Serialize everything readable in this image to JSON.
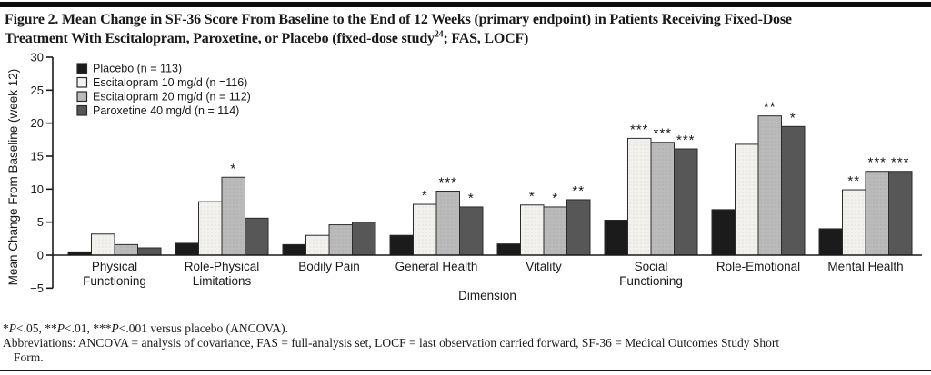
{
  "figure": {
    "title_line1": "Figure 2. Mean Change in SF-36 Score From Baseline to the End of 12 Weeks (primary endpoint) in Patients Receiving Fixed-Dose",
    "title_line2_pre": "Treatment With Escitalopram, Paroxetine, or Placebo (fixed-dose study",
    "title_superscript": "24",
    "title_line2_post": "; FAS, LOCF)"
  },
  "chart_data": {
    "type": "bar",
    "title": "",
    "xlabel": "Dimension",
    "ylabel": "Mean Change From Baseline (week 12)",
    "ylim": [
      -5,
      30
    ],
    "ytick_step": 5,
    "grid": false,
    "legend_position": "top-left",
    "categories": [
      "Physical Functioning",
      "Role-Physical Limitations",
      "Bodily Pain",
      "General Health",
      "Vitality",
      "Social Functioning",
      "Role-Emotional",
      "Mental Health"
    ],
    "category_label_lines": [
      [
        "Physical",
        "Functioning"
      ],
      [
        "Role-Physical",
        "Limitations"
      ],
      [
        "Bodily Pain"
      ],
      [
        "General Health"
      ],
      [
        "Vitality"
      ],
      [
        "Social",
        "Functioning"
      ],
      [
        "Role-Emotional"
      ],
      [
        "Mental Health"
      ]
    ],
    "series": [
      {
        "name": "Placebo (n = 113)",
        "color": "#1b1b1b",
        "values": [
          0.5,
          1.8,
          1.6,
          3.0,
          1.7,
          5.3,
          6.9,
          4.0
        ],
        "significance": [
          "",
          "",
          "",
          "",
          "",
          "",
          "",
          ""
        ]
      },
      {
        "name": "Escitalopram 10 mg/d (n =116)",
        "color": "#f2f1ee",
        "values": [
          3.2,
          8.1,
          3.0,
          7.7,
          7.6,
          17.7,
          16.8,
          9.9
        ],
        "significance": [
          "",
          "",
          "",
          "*",
          "*",
          "***",
          "",
          "**"
        ]
      },
      {
        "name": "Escitalopram 20 mg/d (n = 112)",
        "color": "#bababa",
        "values": [
          1.6,
          11.8,
          4.6,
          9.7,
          7.3,
          17.1,
          21.1,
          12.7
        ],
        "significance": [
          "",
          "*",
          "",
          "***",
          "*",
          "***",
          "**",
          "***"
        ]
      },
      {
        "name": "Paroxetine 40 mg/d (n = 114)",
        "color": "#575757",
        "values": [
          1.1,
          5.6,
          5.0,
          7.3,
          8.4,
          16.1,
          19.5,
          12.7
        ],
        "significance": [
          "",
          "",
          "",
          "*",
          "**",
          "***",
          "*",
          "***"
        ]
      }
    ],
    "significance_note": "*P<.05, **P<.01, ***P<.001 versus placebo (ANCOVA)."
  },
  "footnotes": {
    "pvalue_segments": [
      {
        "t": "*"
      },
      {
        "t": "P",
        "i": true
      },
      {
        "t": "<.05, **"
      },
      {
        "t": "P",
        "i": true
      },
      {
        "t": "<.01, ***"
      },
      {
        "t": "P",
        "i": true
      },
      {
        "t": "<.001 versus placebo (ANCOVA)."
      }
    ],
    "abbreviations_line1": "Abbreviations: ANCOVA = analysis of covariance, FAS = full-analysis set, LOCF = last observation carried forward, SF-36 = Medical Outcomes Study Short",
    "abbreviations_line2": "Form."
  }
}
